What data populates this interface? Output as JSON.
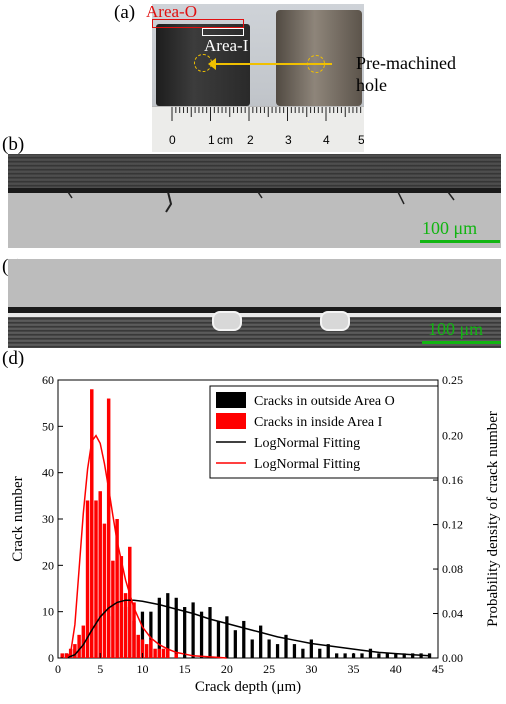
{
  "panels": {
    "a": {
      "label": "(a)",
      "area_o": "Area-O",
      "area_i": "Area-I",
      "hole_label_line1": "Pre-machined",
      "hole_label_line2": "hole",
      "ruler_numbers": [
        "0",
        "1",
        "cm",
        "2",
        "3",
        "4",
        "5"
      ]
    },
    "b": {
      "label": "(b)",
      "scale": "100  μm"
    },
    "c": {
      "label": "(c)",
      "scale": "100  μm"
    },
    "d": {
      "label": "(d)"
    }
  },
  "colors": {
    "outside": "#000000",
    "inside": "#ff0000",
    "scale": "#11b511"
  },
  "chart_data": {
    "type": "bar",
    "xlabel": "Crack depth (μm)",
    "ylabel": "Crack number",
    "y2label": "Probability density of crack number",
    "xlim": [
      0,
      45
    ],
    "ylim": [
      0,
      60
    ],
    "y2lim": [
      0,
      0.25
    ],
    "xticks": [
      "0",
      "5",
      "10",
      "15",
      "20",
      "25",
      "30",
      "35",
      "40",
      "45"
    ],
    "yticks": [
      "0",
      "10",
      "20",
      "30",
      "40",
      "50",
      "60"
    ],
    "y2ticks": [
      "0.00",
      "0.04",
      "0.08",
      "0.12",
      "0.16",
      "0.20",
      "0.25"
    ],
    "legend_position": "top-right",
    "legend": [
      "Cracks in outside Area O",
      "Cracks in inside Area I",
      "LogNormal Fitting",
      "LogNormal Fitting"
    ],
    "series": [
      {
        "name": "Cracks in outside Area O",
        "color": "#000000",
        "x": [
          1,
          2,
          3,
          4,
          5,
          6,
          7,
          8,
          9,
          10,
          11,
          12,
          13,
          14,
          15,
          16,
          17,
          18,
          19,
          20,
          21,
          22,
          23,
          24,
          25,
          26,
          27,
          28,
          29,
          30,
          31,
          32,
          33,
          34,
          35,
          36,
          37,
          38,
          39,
          40,
          41,
          42,
          43,
          44
        ],
        "values": [
          1,
          2,
          4,
          6,
          9,
          9,
          12,
          11,
          8,
          10,
          10,
          13,
          14,
          13,
          11,
          12,
          10,
          11,
          8,
          9,
          6,
          8,
          4,
          7,
          4,
          3,
          5,
          3,
          2,
          4,
          2,
          3,
          1,
          1,
          1,
          1,
          2,
          1,
          1,
          1,
          1,
          1,
          1,
          1
        ]
      },
      {
        "name": "Cracks in inside Area I",
        "color": "#ff0000",
        "x": [
          0.5,
          1,
          1.5,
          2,
          2.5,
          3,
          3.5,
          4,
          4.5,
          5,
          5.5,
          6,
          6.5,
          7,
          7.5,
          8,
          8.5,
          9,
          9.5,
          10,
          10.5,
          11,
          11.5,
          12,
          12.5,
          13,
          14
        ],
        "values": [
          1,
          1,
          2,
          3,
          5,
          7,
          34,
          58,
          34,
          36,
          29,
          56,
          21,
          30,
          22,
          14,
          24,
          12,
          5,
          4,
          3,
          4,
          2,
          2,
          2,
          2,
          1
        ]
      }
    ],
    "fits": [
      {
        "name": "LogNormal Fitting",
        "color": "#000000",
        "x": [
          1,
          2,
          3,
          4,
          5,
          6,
          7,
          8,
          9,
          10,
          12,
          14,
          16,
          18,
          20,
          22,
          24,
          26,
          28,
          30,
          32,
          34,
          36,
          38,
          40,
          42,
          44
        ],
        "y": [
          0.0,
          0.003,
          0.012,
          0.025,
          0.037,
          0.045,
          0.05,
          0.052,
          0.052,
          0.051,
          0.048,
          0.044,
          0.04,
          0.035,
          0.031,
          0.027,
          0.023,
          0.019,
          0.016,
          0.013,
          0.011,
          0.009,
          0.007,
          0.005,
          0.004,
          0.003,
          0.002
        ]
      },
      {
        "name": "LogNormal Fitting",
        "color": "#ff0000",
        "x": [
          1,
          1.5,
          2,
          2.5,
          3,
          3.5,
          4,
          4.5,
          5,
          5.5,
          6,
          6.5,
          7,
          8,
          9,
          10,
          11,
          12,
          13,
          14,
          16,
          18,
          20
        ],
        "y": [
          0.0,
          0.005,
          0.03,
          0.08,
          0.13,
          0.17,
          0.195,
          0.2,
          0.193,
          0.175,
          0.152,
          0.128,
          0.105,
          0.07,
          0.045,
          0.028,
          0.018,
          0.012,
          0.008,
          0.005,
          0.002,
          0.001,
          0.0
        ]
      }
    ]
  }
}
